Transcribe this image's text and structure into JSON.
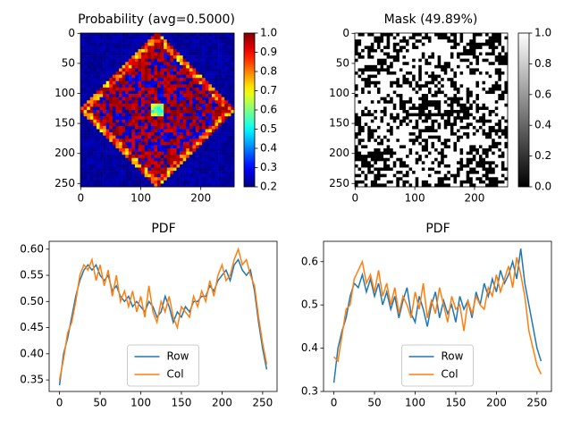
{
  "chart_data": [
    {
      "type": "heatmap",
      "title": "Probability (avg=0.5000)",
      "cmap": "jet",
      "xlim": [
        -0.5,
        255.5
      ],
      "ylim": [
        255.5,
        -0.5
      ],
      "xticks": [
        0,
        100,
        200
      ],
      "yticks": [
        0,
        50,
        100,
        150,
        200,
        250
      ],
      "clim": [
        0.2,
        1
      ],
      "cticks": [
        0.2,
        0.3,
        0.4,
        0.5,
        0.6,
        0.7,
        0.8,
        0.9,
        {
          "value": 1,
          "label": "1.0"
        }
      ]
    },
    {
      "type": "heatmap",
      "title": "Mask (49.89%)",
      "cmap": "gray",
      "xlim": [
        -0.5,
        255.5
      ],
      "ylim": [
        255.5,
        -0.5
      ],
      "xticks": [
        0,
        100,
        200
      ],
      "yticks": [
        0,
        50,
        100,
        150,
        200,
        250
      ],
      "clim": [
        0,
        1
      ],
      "cticks": [
        {
          "value": 0,
          "label": "0.0"
        },
        0.2,
        0.4,
        0.6,
        0.8,
        {
          "value": 1,
          "label": "1.0"
        }
      ]
    },
    {
      "type": "line",
      "title": "PDF",
      "legend": "lower center",
      "x": [
        0,
        5,
        10,
        15,
        20,
        25,
        30,
        35,
        40,
        45,
        50,
        55,
        60,
        65,
        70,
        75,
        80,
        85,
        90,
        95,
        100,
        105,
        110,
        115,
        120,
        125,
        130,
        135,
        140,
        145,
        150,
        155,
        160,
        165,
        170,
        175,
        180,
        185,
        190,
        195,
        200,
        205,
        210,
        215,
        220,
        225,
        230,
        235,
        240,
        245,
        250,
        255
      ],
      "series": [
        {
          "name": "Row",
          "color": "#1f77b4",
          "values": [
            0.34,
            0.4,
            0.43,
            0.47,
            0.51,
            0.54,
            0.56,
            0.57,
            0.56,
            0.57,
            0.55,
            0.54,
            0.55,
            0.52,
            0.53,
            0.51,
            0.5,
            0.51,
            0.49,
            0.5,
            0.49,
            0.48,
            0.5,
            0.49,
            0.47,
            0.48,
            0.51,
            0.49,
            0.46,
            0.48,
            0.47,
            0.49,
            0.48,
            0.5,
            0.5,
            0.51,
            0.51,
            0.53,
            0.52,
            0.54,
            0.55,
            0.56,
            0.54,
            0.57,
            0.58,
            0.56,
            0.55,
            0.56,
            0.52,
            0.46,
            0.41,
            0.37
          ]
        },
        {
          "name": "Col",
          "color": "#ff7f0e",
          "values": [
            0.35,
            0.39,
            0.44,
            0.46,
            0.5,
            0.55,
            0.57,
            0.56,
            0.58,
            0.54,
            0.57,
            0.53,
            0.56,
            0.51,
            0.55,
            0.5,
            0.52,
            0.49,
            0.52,
            0.48,
            0.51,
            0.47,
            0.53,
            0.48,
            0.46,
            0.5,
            0.48,
            0.51,
            0.47,
            0.45,
            0.49,
            0.48,
            0.47,
            0.51,
            0.49,
            0.52,
            0.5,
            0.54,
            0.51,
            0.55,
            0.57,
            0.54,
            0.55,
            0.58,
            0.6,
            0.57,
            0.58,
            0.55,
            0.53,
            0.47,
            0.42,
            0.38
          ]
        }
      ],
      "xlim": [
        -12.75,
        267.75
      ],
      "ylim": [
        0.328,
        0.615
      ],
      "xticks": [
        0,
        50,
        100,
        150,
        200,
        250
      ],
      "yticks": [
        0.35,
        {
          "value": 0.4,
          "label": "0.40"
        },
        0.45,
        {
          "value": 0.5,
          "label": "0.50"
        },
        0.55,
        {
          "value": 0.6,
          "label": "0.60"
        }
      ]
    },
    {
      "type": "line",
      "title": "PDF",
      "legend": "lower center",
      "x": [
        0,
        5,
        10,
        15,
        20,
        25,
        30,
        35,
        40,
        45,
        50,
        55,
        60,
        65,
        70,
        75,
        80,
        85,
        90,
        95,
        100,
        105,
        110,
        115,
        120,
        125,
        130,
        135,
        140,
        145,
        150,
        155,
        160,
        165,
        170,
        175,
        180,
        185,
        190,
        195,
        200,
        205,
        210,
        215,
        220,
        225,
        230,
        235,
        240,
        245,
        250,
        255
      ],
      "series": [
        {
          "name": "Row",
          "color": "#1f77b4",
          "values": [
            0.32,
            0.4,
            0.44,
            0.47,
            0.52,
            0.55,
            0.54,
            0.57,
            0.53,
            0.56,
            0.52,
            0.55,
            0.5,
            0.53,
            0.49,
            0.52,
            0.47,
            0.51,
            0.54,
            0.48,
            0.46,
            0.52,
            0.49,
            0.45,
            0.5,
            0.53,
            0.47,
            0.51,
            0.48,
            0.5,
            0.46,
            0.52,
            0.49,
            0.51,
            0.47,
            0.53,
            0.5,
            0.55,
            0.52,
            0.56,
            0.53,
            0.58,
            0.55,
            0.57,
            0.6,
            0.56,
            0.63,
            0.55,
            0.5,
            0.45,
            0.4,
            0.37
          ]
        },
        {
          "name": "Col",
          "color": "#ff7f0e",
          "values": [
            0.38,
            0.37,
            0.43,
            0.49,
            0.5,
            0.56,
            0.58,
            0.6,
            0.55,
            0.57,
            0.53,
            0.58,
            0.52,
            0.55,
            0.5,
            0.54,
            0.48,
            0.52,
            0.5,
            0.47,
            0.53,
            0.49,
            0.55,
            0.47,
            0.51,
            0.48,
            0.54,
            0.5,
            0.46,
            0.52,
            0.49,
            0.5,
            0.44,
            0.51,
            0.48,
            0.52,
            0.5,
            0.49,
            0.54,
            0.52,
            0.57,
            0.53,
            0.56,
            0.59,
            0.54,
            0.61,
            0.57,
            0.52,
            0.44,
            0.4,
            0.36,
            0.34
          ]
        }
      ],
      "xlim": [
        -12.75,
        267.75
      ],
      "ylim": [
        0.3,
        0.647
      ],
      "xticks": [
        0,
        50,
        100,
        150,
        200,
        250
      ],
      "yticks": [
        0.3,
        0.4,
        0.5,
        0.6
      ]
    }
  ]
}
